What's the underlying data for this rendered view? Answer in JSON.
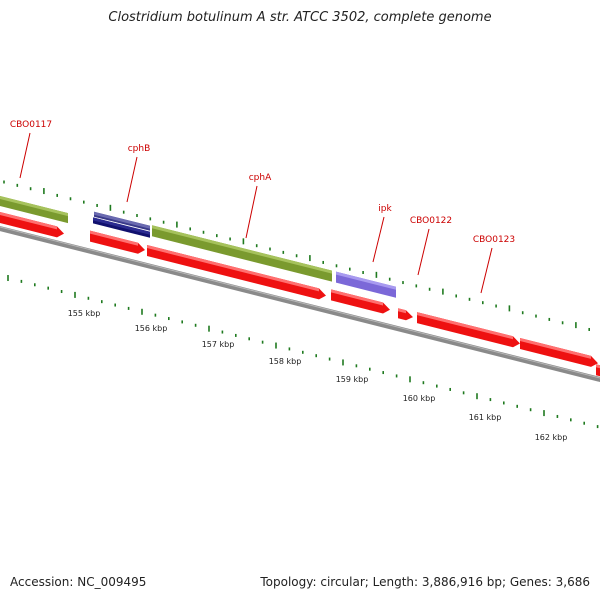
{
  "title": "Clostridium botulinum A str. ATCC 3502, complete genome",
  "footer": {
    "accession": "Accession: NC_009495",
    "topology": "Topology: circular; Length: 3,886,916 bp; Genes: 3,686"
  },
  "colors": {
    "backbone": "#8a8a8a",
    "gene_red": "#ee1111",
    "gene_red_light": "#ff7070",
    "gene_green": "#7a9a2e",
    "gene_green_light": "#a6c25c",
    "gene_navy": "#10106e",
    "gene_lavender": "#7b68d8",
    "tick_green": "#1f7a1f",
    "label_red": "#cc0000"
  },
  "gene_labels": [
    "CBO0117",
    "cphB",
    "cphA",
    "ipk",
    "CBO0122",
    "CBO0123"
  ],
  "scale_labels": [
    "155 kbp",
    "156 kbp",
    "157 kbp",
    "158 kbp",
    "159 kbp",
    "160 kbp",
    "161 kbp",
    "162 kbp"
  ]
}
